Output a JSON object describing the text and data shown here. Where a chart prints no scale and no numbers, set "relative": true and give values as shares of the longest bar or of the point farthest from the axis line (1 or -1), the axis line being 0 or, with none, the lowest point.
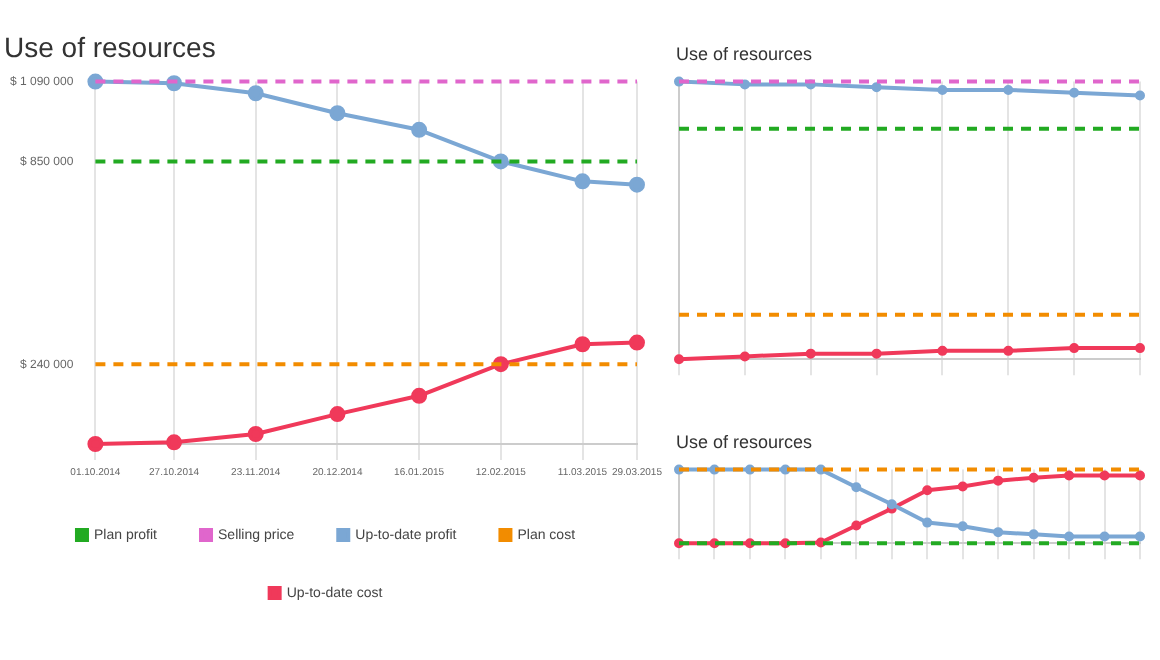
{
  "chart_data": [
    {
      "type": "line",
      "title": "Use of resources",
      "x": [
        "2014-10-01",
        "2014-10-27",
        "2014-11-23",
        "2014-12-20",
        "2015-01-16",
        "2015-02-12",
        "2015-03-11",
        "2015-03-29"
      ],
      "xlim": [
        "2014-10-01",
        "2015-03-29"
      ],
      "xticks": [
        {
          "value": "2014-10-01",
          "label": "01.10.2014"
        },
        {
          "value": "2014-10-27",
          "label": "27.10.2014"
        },
        {
          "value": "2014-11-23",
          "label": "23.11.2014"
        },
        {
          "value": "2014-12-20",
          "label": "20.12.2014"
        },
        {
          "value": "2015-01-16",
          "label": "16.01.2015"
        },
        {
          "value": "2015-02-12",
          "label": "12.02.2015"
        },
        {
          "value": "2015-03-11",
          "label": "11.03.2015"
        },
        {
          "value": "2015-03-29",
          "label": "29.03.2015"
        }
      ],
      "ylim": [
        0,
        1090000
      ],
      "yticks": [
        {
          "value": 240000,
          "label": "$ 240 000"
        },
        {
          "value": 850000,
          "label": "$ 850 000"
        },
        {
          "value": 1090000,
          "label": "$ 1 090 000"
        }
      ],
      "grid": "x",
      "legend": "bottom",
      "series": [
        {
          "name": "Plan profit",
          "color": "#22aa22",
          "marker": "none",
          "line_style": "dashed",
          "values": [
            850000,
            850000,
            850000,
            850000,
            850000,
            850000,
            850000,
            850000
          ]
        },
        {
          "name": "Selling price",
          "color": "#e066cc",
          "marker": "none",
          "line_style": "dashed",
          "values": [
            1090000,
            1090000,
            1090000,
            1090000,
            1090000,
            1090000,
            1090000,
            1090000
          ]
        },
        {
          "name": "Up-to-date profit",
          "color": "#7ba7d4",
          "marker": "circle",
          "line_style": "solid",
          "values": [
            1090000,
            1085000,
            1055000,
            995000,
            945000,
            850000,
            790000,
            780000
          ]
        },
        {
          "name": "Plan cost",
          "color": "#f28c00",
          "marker": "none",
          "line_style": "dashed",
          "values": [
            240000,
            240000,
            240000,
            240000,
            240000,
            240000,
            240000,
            240000
          ]
        },
        {
          "name": "Up-to-date cost",
          "color": "#f0395a",
          "marker": "circle",
          "line_style": "solid",
          "values": [
            0,
            5000,
            30000,
            90000,
            145000,
            240000,
            300000,
            305000
          ]
        }
      ]
    },
    {
      "type": "line",
      "title": "Use of resources",
      "relative": true,
      "grid": "x",
      "categories": [
        null,
        null,
        null,
        null,
        null,
        null,
        null,
        null
      ],
      "series": [
        {
          "color": "#22aa22",
          "marker": "none",
          "line_style": "dashed",
          "values": [
            0.83,
            0.83,
            0.83,
            0.83,
            0.83,
            0.83,
            0.83,
            0.83
          ]
        },
        {
          "color": "#e066cc",
          "marker": "none",
          "line_style": "dashed",
          "values": [
            1,
            1,
            1,
            1,
            1,
            1,
            1,
            1
          ]
        },
        {
          "color": "#7ba7d4",
          "marker": "circle",
          "line_style": "solid",
          "values": [
            1,
            0.99,
            0.99,
            0.98,
            0.97,
            0.97,
            0.96,
            0.95
          ]
        },
        {
          "color": "#f28c00",
          "marker": "none",
          "line_style": "dashed",
          "values": [
            0.16,
            0.16,
            0.16,
            0.16,
            0.16,
            0.16,
            0.16,
            0.16
          ]
        },
        {
          "color": "#f0395a",
          "marker": "circle",
          "line_style": "solid",
          "values": [
            0,
            0.01,
            0.02,
            0.02,
            0.03,
            0.03,
            0.04,
            0.04
          ]
        }
      ]
    },
    {
      "type": "line",
      "title": "Use of resources",
      "relative": true,
      "grid": "x",
      "categories": [
        null,
        null,
        null,
        null,
        null,
        null,
        null,
        null,
        null,
        null,
        null,
        null,
        null,
        null
      ],
      "series": [
        {
          "color": "#22aa22",
          "marker": "none",
          "line_style": "dashed",
          "values": [
            0,
            0,
            0,
            0,
            0,
            0,
            0,
            0,
            0,
            0,
            0,
            0,
            0,
            0
          ]
        },
        {
          "color": "#f28c00",
          "marker": "none",
          "line_style": "dashed",
          "values": [
            1,
            1,
            1,
            1,
            1,
            1,
            1,
            1,
            1,
            1,
            1,
            1,
            1,
            1
          ]
        },
        {
          "color": "#7ba7d4",
          "marker": "circle",
          "line_style": "solid",
          "values": [
            1,
            1,
            1,
            1,
            1,
            0.76,
            0.53,
            0.28,
            0.23,
            0.15,
            0.12,
            0.09,
            0.09,
            0.09
          ]
        },
        {
          "color": "#f0395a",
          "marker": "circle",
          "line_style": "solid",
          "values": [
            0,
            0,
            0,
            0,
            0.01,
            0.24,
            0.47,
            0.72,
            0.77,
            0.85,
            0.89,
            0.92,
            0.92,
            0.92
          ]
        }
      ]
    }
  ]
}
